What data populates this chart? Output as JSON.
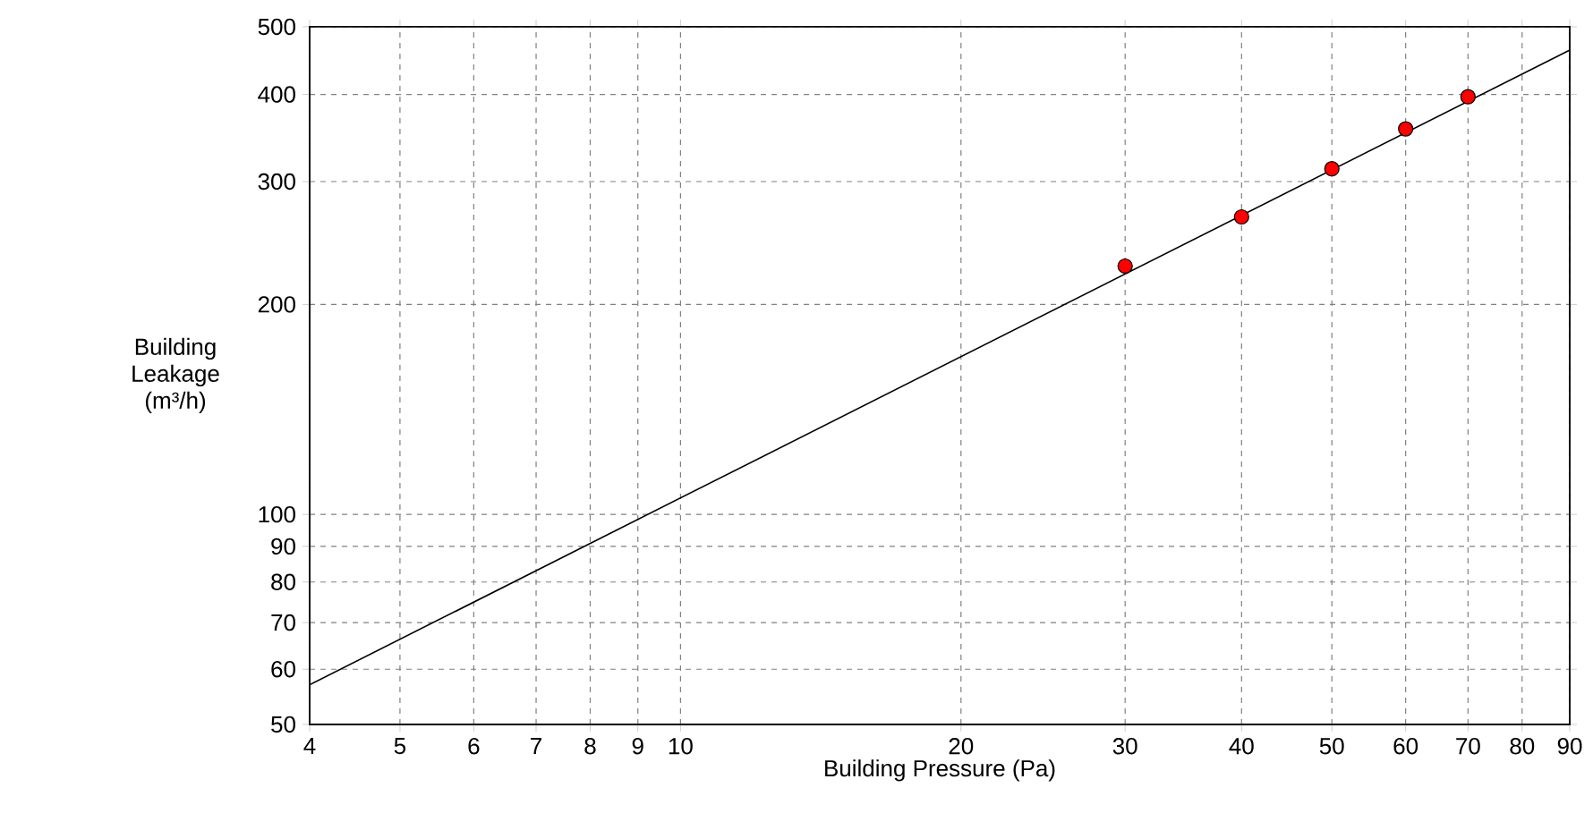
{
  "chart_data": {
    "type": "scatter",
    "xlabel": "Building Pressure (Pa)",
    "ylabel": "Building Leakage (m³/h)",
    "log": "xy",
    "grid": true,
    "marker": "circle",
    "line_style": "solid",
    "xlim": [
      4,
      90
    ],
    "ylim": [
      50,
      500
    ],
    "xticks": [
      4,
      5,
      6,
      7,
      8,
      9,
      10,
      20,
      30,
      40,
      50,
      60,
      70,
      80,
      90
    ],
    "yticks": [
      50,
      60,
      70,
      80,
      90,
      100,
      200,
      300,
      400,
      500
    ],
    "series": [
      {
        "type": "line",
        "color": "#000000",
        "x": [
          4,
          90
        ],
        "values": [
          57,
          463
        ],
        "marker": "none"
      },
      {
        "color": "#ff0000",
        "x": [
          30,
          40,
          50,
          60,
          70
        ],
        "values": [
          227,
          267,
          313,
          357,
          397
        ]
      }
    ]
  }
}
